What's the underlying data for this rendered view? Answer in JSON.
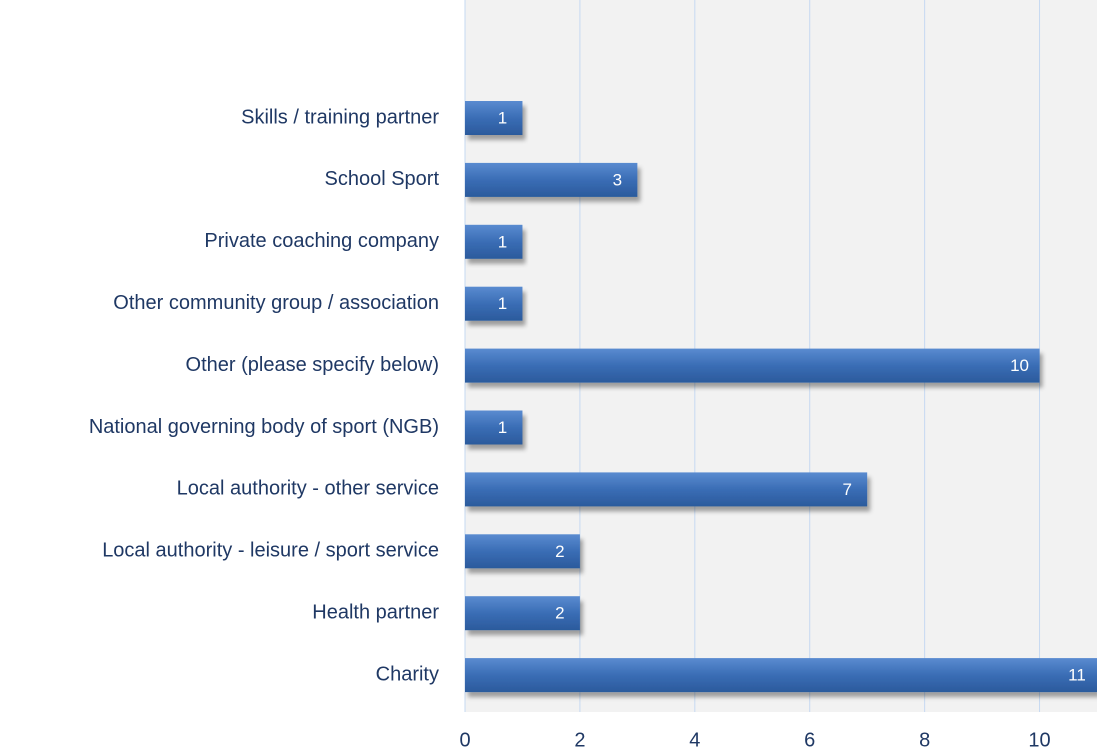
{
  "chart_data": {
    "type": "bar",
    "orientation": "horizontal",
    "categories": [
      "Skills / training partner",
      "School Sport",
      "Private coaching company",
      "Other community group / association",
      "Other (please specify below)",
      "National governing body of sport (NGB)",
      "Local authority - other service",
      "Local authority - leisure / sport service",
      "Health partner",
      "Charity"
    ],
    "values": [
      1,
      3,
      1,
      1,
      10,
      1,
      7,
      2,
      2,
      11
    ],
    "color": "#3a6db5",
    "xlim": [
      0,
      11
    ],
    "xticks": [
      0,
      2,
      4,
      6,
      8,
      10
    ],
    "grid": true
  }
}
